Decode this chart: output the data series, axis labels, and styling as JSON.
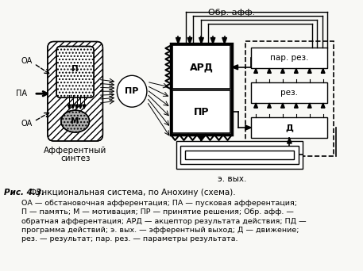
{
  "title_italic": "Рис. 4.3.",
  "title_normal": " Функциональная система, по Анохину (схема).",
  "caption_lines": [
    "ОА — обстановочная афферентация; ПА — пусковая афферентация;",
    "П — память; М — мотивация; ПР — принятие решения; Обр. афф. —",
    "обратная афферентация; АРД — акцептор результата действия; ПД —",
    "программа действий; э. вых. — эфферентный выход; Д — движение;",
    "рез. — результат; пар. рез. — параметры результата."
  ],
  "bg_color": "#f8f8f5",
  "label_oa1": "ОА",
  "label_pa": "ПА",
  "label_oa2": "ОА",
  "label_p": "П",
  "label_m": "М",
  "label_afferent_1": "Афферентный",
  "label_afferent_2": "синтез",
  "label_pr_circle": "ПР",
  "label_ard": "АРД",
  "label_pr_box": "ПР",
  "label_obr": "Обр. афф.",
  "label_par_rez": "пар. рез.",
  "label_rez": "рез.",
  "label_d": "Д",
  "label_e_vykh": "э. вых."
}
